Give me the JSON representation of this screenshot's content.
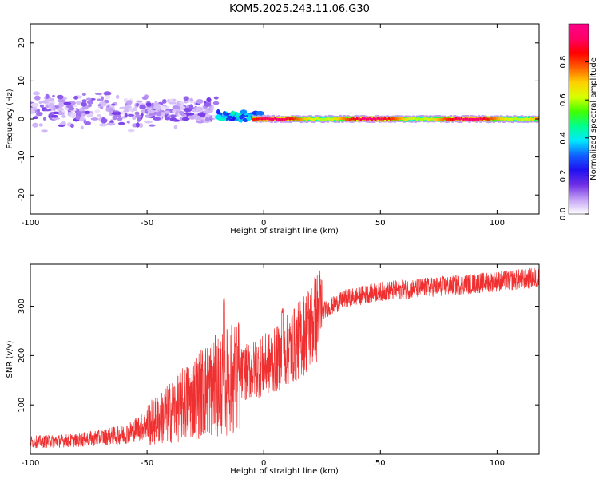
{
  "title": "KOM5.2025.243.11.06.G30",
  "chart_data": [
    {
      "type": "heatmap",
      "name": "spectrogram",
      "xlabel": "Height of straight line (km)",
      "ylabel": "Frequency (Hz)",
      "xlim": [
        -100,
        118
      ],
      "ylim": [
        -25,
        25
      ],
      "xticks": [
        -100,
        -50,
        0,
        50,
        100
      ],
      "yticks": [
        -20,
        -10,
        0,
        10,
        20
      ],
      "colorbar": {
        "label": "Normalized spectral amplitude",
        "range": [
          0,
          1
        ],
        "ticks": [
          0.0,
          0.2,
          0.4,
          0.6,
          0.8
        ],
        "tick_labels": [
          "0.0",
          "0.2",
          "0.4",
          "0.6",
          "0.8"
        ],
        "colormap": [
          "#ffffff",
          "#c2a0f5",
          "#6e2ee6",
          "#2010f0",
          "#1060ff",
          "#00e8ff",
          "#00ff90",
          "#40ff00",
          "#d8ff00",
          "#ffd000",
          "#ff6000",
          "#ff0000",
          "#ff0066",
          "#ff0088"
        ]
      },
      "description_regions": [
        {
          "x_range": [
            -100,
            -20
          ],
          "freq_center": 2.0,
          "freq_spread": 6.0,
          "amplitude_range": [
            0.05,
            0.15
          ]
        },
        {
          "x_range": [
            -20,
            0
          ],
          "freq_center": 0.8,
          "freq_spread": 1.5,
          "amplitude_range": [
            0.2,
            0.45
          ]
        },
        {
          "x_range": [
            0,
            118
          ],
          "freq_center": 0.0,
          "freq_spread": 0.6,
          "amplitude_range": [
            0.6,
            0.95
          ]
        }
      ]
    },
    {
      "type": "line",
      "name": "snr",
      "xlabel": "Height of straight line (km)",
      "ylabel": "SNR (v/v)",
      "xlim": [
        -100,
        118
      ],
      "ylim": [
        0,
        385
      ],
      "xticks": [
        -100,
        -50,
        0,
        50,
        100
      ],
      "yticks": [
        100,
        200,
        300
      ],
      "color": "#f03030",
      "trend_points": [
        {
          "x": -100,
          "y": 25
        },
        {
          "x": -80,
          "y": 28
        },
        {
          "x": -60,
          "y": 40
        },
        {
          "x": -45,
          "y": 70
        },
        {
          "x": -35,
          "y": 100
        },
        {
          "x": -25,
          "y": 130
        },
        {
          "x": -15,
          "y": 150
        },
        {
          "x": -5,
          "y": 170
        },
        {
          "x": 5,
          "y": 190
        },
        {
          "x": 15,
          "y": 230
        },
        {
          "x": 25,
          "y": 290
        },
        {
          "x": 35,
          "y": 315
        },
        {
          "x": 50,
          "y": 330
        },
        {
          "x": 75,
          "y": 340
        },
        {
          "x": 100,
          "y": 350
        },
        {
          "x": 118,
          "y": 358
        }
      ],
      "peaks": [
        {
          "x": -17,
          "y": 320
        },
        {
          "x": -12,
          "y": 230
        },
        {
          "x": 8,
          "y": 300
        }
      ]
    }
  ]
}
